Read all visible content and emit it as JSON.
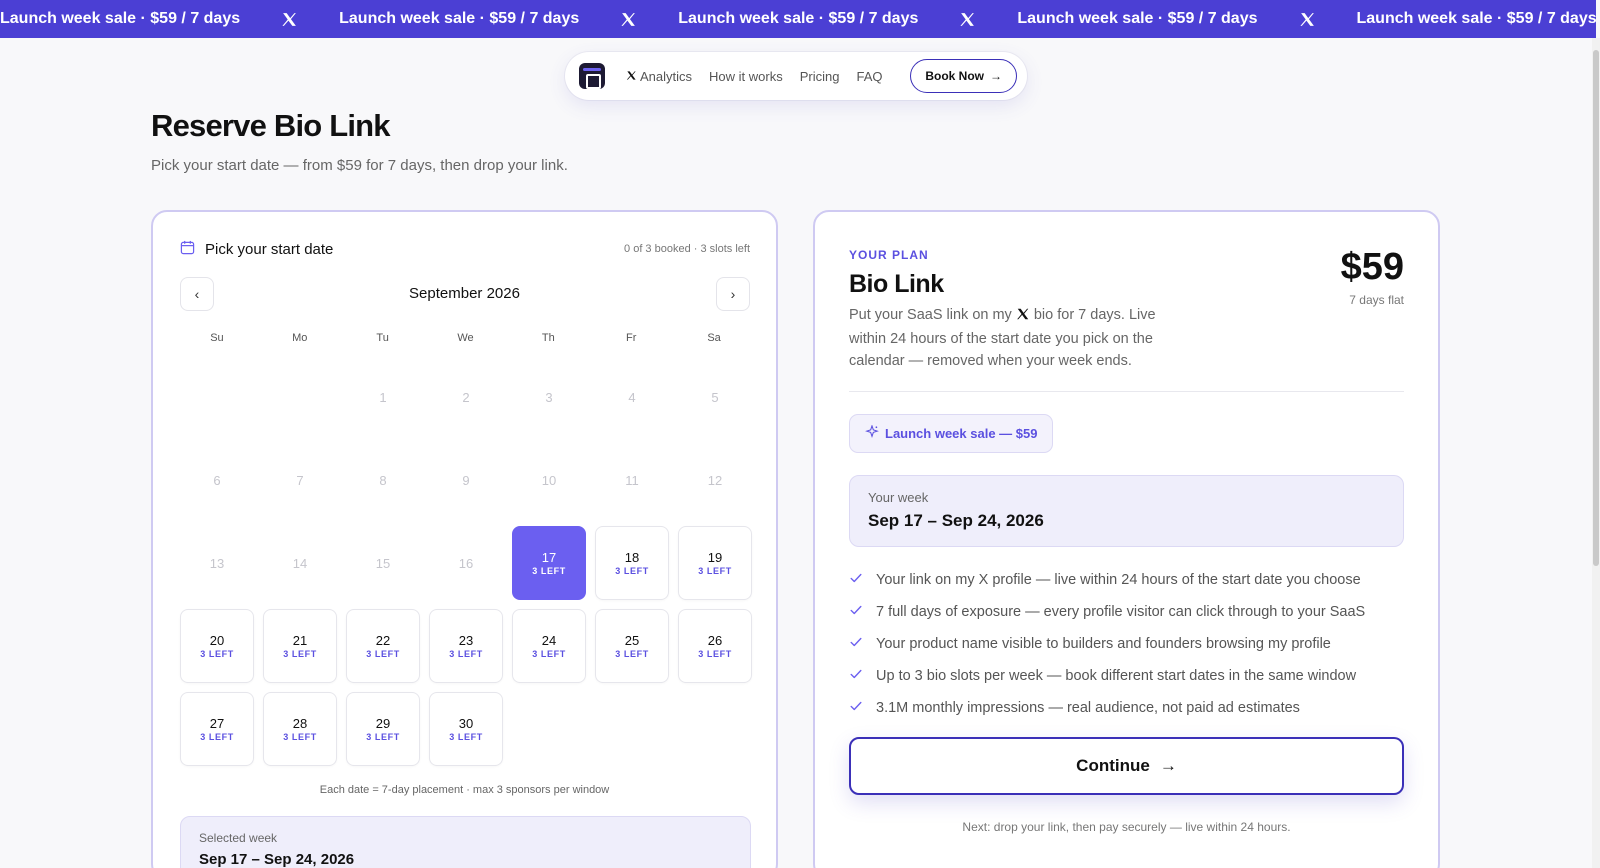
{
  "marquee": {
    "items": [
      {
        "text": "Launch week sale ·  $59  / 7 days",
        "icon": "x-logo-icon"
      },
      {
        "text": "Launch week sale ·  $59  / 7 days",
        "icon": "x-logo-icon"
      },
      {
        "text": "Launch week sale ·  $59  / 7 days",
        "icon": "x-logo-icon"
      },
      {
        "text": "Launch week sale ·  $59  / 7 days",
        "icon": "x-logo-icon"
      },
      {
        "text": "Launch week sale ·  $59  / 7 days",
        "icon": "x-logo-icon"
      }
    ],
    "color": "#4b3fd4"
  },
  "nav": {
    "logo_icon": "calendar-logo-icon",
    "links": [
      "Analytics",
      "How it works",
      "Pricing",
      "FAQ"
    ],
    "book_label": "Book Now"
  },
  "page": {
    "title": "Reserve Bio Link",
    "subtitle": "Pick your start date — from $59 for 7 days, then drop your link."
  },
  "calendar": {
    "heading": "Pick your start date",
    "count": "0 of 3 booked · 3 slots left",
    "month": "September 2026",
    "weekdays": [
      "Su",
      "Mo",
      "Tu",
      "We",
      "Th",
      "Fr",
      "Sa"
    ],
    "leading_blanks": 2,
    "days": [
      {
        "n": "1",
        "state": "past"
      },
      {
        "n": "2",
        "state": "past"
      },
      {
        "n": "3",
        "state": "past"
      },
      {
        "n": "4",
        "state": "past"
      },
      {
        "n": "5",
        "state": "past"
      },
      {
        "n": "6",
        "state": "past"
      },
      {
        "n": "7",
        "state": "past"
      },
      {
        "n": "8",
        "state": "past"
      },
      {
        "n": "9",
        "state": "past"
      },
      {
        "n": "10",
        "state": "past"
      },
      {
        "n": "11",
        "state": "past"
      },
      {
        "n": "12",
        "state": "past"
      },
      {
        "n": "13",
        "state": "past"
      },
      {
        "n": "14",
        "state": "past"
      },
      {
        "n": "15",
        "state": "past"
      },
      {
        "n": "16",
        "state": "past"
      },
      {
        "n": "17",
        "state": "selected",
        "slots": "3 LEFT"
      },
      {
        "n": "18",
        "state": "avail",
        "slots": "3 LEFT"
      },
      {
        "n": "19",
        "state": "avail",
        "slots": "3 LEFT"
      },
      {
        "n": "20",
        "state": "avail",
        "slots": "3 LEFT"
      },
      {
        "n": "21",
        "state": "avail",
        "slots": "3 LEFT"
      },
      {
        "n": "22",
        "state": "avail",
        "slots": "3 LEFT"
      },
      {
        "n": "23",
        "state": "avail",
        "slots": "3 LEFT"
      },
      {
        "n": "24",
        "state": "avail",
        "slots": "3 LEFT"
      },
      {
        "n": "25",
        "state": "avail",
        "slots": "3 LEFT"
      },
      {
        "n": "26",
        "state": "avail",
        "slots": "3 LEFT"
      },
      {
        "n": "27",
        "state": "avail",
        "slots": "3 LEFT"
      },
      {
        "n": "28",
        "state": "avail",
        "slots": "3 LEFT"
      },
      {
        "n": "29",
        "state": "avail",
        "slots": "3 LEFT"
      },
      {
        "n": "30",
        "state": "avail",
        "slots": "3 LEFT"
      }
    ],
    "footnote": "Each date = 7-day placement · max 3 sponsors per window",
    "selected_label": "Selected week",
    "selected_value": "Sep 17 – Sep 24, 2026",
    "accent": "#6b5ff0"
  },
  "plan": {
    "kicker": "YOUR PLAN",
    "name": "Bio Link",
    "price": "$59",
    "price_sub": "7 days flat",
    "desc_before": "Put your SaaS link on my ",
    "desc_after": " bio for 7 days. Live within 24 hours of the start date you pick on the calendar — removed when your week ends.",
    "sale_chip": "Launch week sale — $59",
    "week_label": "Your week",
    "week_value": "Sep 17 – Sep 24, 2026",
    "features": [
      "Your link on my X profile — live within 24 hours of the start date you choose",
      "7 full days of exposure — every profile visitor can click through to your SaaS",
      "Your product name visible to builders and founders browsing my profile",
      "Up to 3 bio slots per week — book different start dates in the same window",
      "3.1M monthly impressions — real audience, not paid ad estimates"
    ],
    "continue_label": "Continue",
    "next_note": "Next: drop your link, then pay securely — live within 24 hours."
  }
}
